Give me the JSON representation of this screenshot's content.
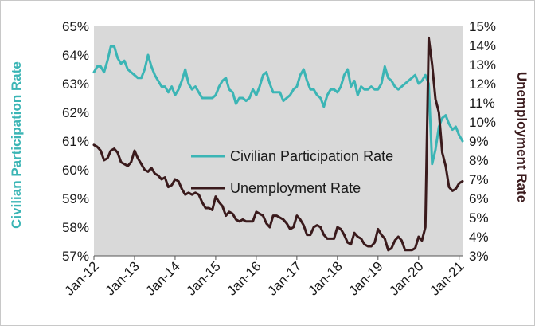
{
  "chart_data": {
    "type": "line",
    "title": "",
    "x_tick_labels": [
      "Jan-12",
      "Jan-13",
      "Jan-14",
      "Jan-15",
      "Jan-16",
      "Jan-17",
      "Jan-18",
      "Jan-19",
      "Jan-20",
      "Jan-21"
    ],
    "left_axis": {
      "label": "Civilian Participation Rate",
      "ylim": [
        57,
        65
      ],
      "tick_labels": [
        "57%",
        "58%",
        "59%",
        "60%",
        "61%",
        "62%",
        "63%",
        "64%",
        "65%"
      ]
    },
    "right_axis": {
      "label": "Unemployment Rate",
      "ylim": [
        3,
        15
      ],
      "tick_labels": [
        "3%",
        "4%",
        "5%",
        "6%",
        "7%",
        "8%",
        "9%",
        "10%",
        "11%",
        "12%",
        "13%",
        "14%",
        "15%"
      ]
    },
    "legend": {
      "position": "center",
      "items": [
        "Civilian Participation Rate",
        "Unemployment Rate"
      ]
    },
    "colors": {
      "participation": "#3bb5b5",
      "unemployment": "#3a1a1c",
      "plot_background": "#d9d9d9"
    },
    "x_start": "2012-01",
    "series": [
      {
        "name": "Civilian Participation Rate",
        "axis": "left",
        "values": [
          63.4,
          63.6,
          63.6,
          63.4,
          63.8,
          64.3,
          64.3,
          63.9,
          63.7,
          63.8,
          63.5,
          63.4,
          63.3,
          63.2,
          63.2,
          63.5,
          64.0,
          63.6,
          63.3,
          63.1,
          62.9,
          62.9,
          62.7,
          62.9,
          62.6,
          62.8,
          63.1,
          63.5,
          63.0,
          62.8,
          62.9,
          62.7,
          62.5,
          62.5,
          62.5,
          62.5,
          62.6,
          62.9,
          63.1,
          63.2,
          62.8,
          62.7,
          62.3,
          62.5,
          62.5,
          62.4,
          62.5,
          62.8,
          62.6,
          62.9,
          63.3,
          63.4,
          63.0,
          62.7,
          62.7,
          62.7,
          62.4,
          62.5,
          62.6,
          62.8,
          62.9,
          63.3,
          63.5,
          63.1,
          62.8,
          62.8,
          62.6,
          62.5,
          62.2,
          62.6,
          62.8,
          62.8,
          62.7,
          62.9,
          63.3,
          63.5,
          62.9,
          63.1,
          62.6,
          62.9,
          62.8,
          62.8,
          62.9,
          62.8,
          62.8,
          63.0,
          63.6,
          63.2,
          63.1,
          62.9,
          62.8,
          62.9,
          63.0,
          63.1,
          63.2,
          63.3,
          63.0,
          63.1,
          63.3,
          63.0,
          60.2,
          60.7,
          61.5,
          61.8,
          61.9,
          61.6,
          61.4,
          61.5,
          61.2,
          61.0
        ]
      },
      {
        "name": "Unemployment Rate",
        "axis": "right",
        "values": [
          8.8,
          8.7,
          8.5,
          8.0,
          8.1,
          8.5,
          8.6,
          8.4,
          7.9,
          7.8,
          7.7,
          7.9,
          8.5,
          8.1,
          7.8,
          7.5,
          7.4,
          7.6,
          7.3,
          7.2,
          7.0,
          7.1,
          6.6,
          6.7,
          7.0,
          6.9,
          6.5,
          6.2,
          6.3,
          6.2,
          6.3,
          6.2,
          5.8,
          5.5,
          5.5,
          5.4,
          6.1,
          5.8,
          5.6,
          5.1,
          5.3,
          5.2,
          4.9,
          4.8,
          4.9,
          4.8,
          4.8,
          4.8,
          5.3,
          5.2,
          5.1,
          4.7,
          4.5,
          5.1,
          5.1,
          5.0,
          4.9,
          4.7,
          4.4,
          4.5,
          5.1,
          4.9,
          4.6,
          4.1,
          4.1,
          4.5,
          4.6,
          4.5,
          4.1,
          3.9,
          3.9,
          3.9,
          4.5,
          4.4,
          4.1,
          3.7,
          3.6,
          4.2,
          4.0,
          3.9,
          3.6,
          3.5,
          3.5,
          3.7,
          4.4,
          4.1,
          3.9,
          3.3,
          3.4,
          3.8,
          4.0,
          3.8,
          3.3,
          3.3,
          3.3,
          3.4,
          4.0,
          3.8,
          4.5,
          14.4,
          13.0,
          11.2,
          10.5,
          8.4,
          7.7,
          6.6,
          6.4,
          6.5,
          6.8,
          6.9
        ]
      }
    ]
  }
}
